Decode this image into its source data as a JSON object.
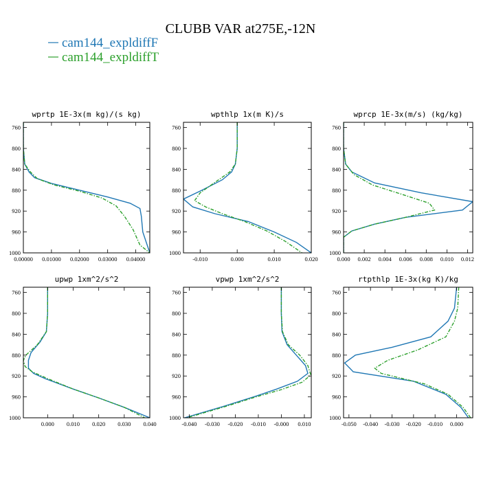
{
  "figure": {
    "title": "CLUBB VAR at275E,-12N",
    "legend": [
      {
        "label": "cam144_expldiffF",
        "color": "#1f77b4",
        "dash": "solid"
      },
      {
        "label": "cam144_expldiffT",
        "color": "#2ca02c",
        "dash": "dashed"
      }
    ]
  },
  "chart_data": [
    {
      "type": "line",
      "title": "wprtp  1E-3x(m kg)/(s kg)",
      "xlim": [
        0,
        0.045
      ],
      "ylim": [
        1000,
        750
      ],
      "ylabel": "",
      "xlabel": "",
      "xticks": [
        0,
        0.01,
        0.02,
        0.03,
        0.04
      ],
      "xtick_labels": [
        "0.00000",
        "0.01000",
        "0.02000",
        "0.03000",
        "0.04000"
      ],
      "yticks": [
        760,
        800,
        840,
        880,
        920,
        960,
        1000
      ],
      "series": [
        {
          "name": "cam144_expldiffF",
          "x": [
            0,
            0,
            0.0005,
            0.002,
            0.004,
            0.01,
            0.02,
            0.03,
            0.038,
            0.0415,
            0.042,
            0.0425,
            0.045
          ],
          "y": [
            750,
            800,
            830,
            845,
            856,
            867,
            880,
            893,
            905,
            915,
            930,
            960,
            1000
          ]
        },
        {
          "name": "cam144_expldiffT",
          "x": [
            0,
            0,
            0.0005,
            0.0025,
            0.005,
            0.011,
            0.02,
            0.028,
            0.033,
            0.036,
            0.039,
            0.0415,
            0.045
          ],
          "y": [
            750,
            800,
            830,
            845,
            858,
            870,
            882,
            895,
            910,
            930,
            955,
            985,
            1000
          ]
        }
      ]
    },
    {
      "type": "line",
      "title": "wpthlp  1x(m K)/s",
      "xlim": [
        -0.0145,
        0.02
      ],
      "ylim": [
        1000,
        750
      ],
      "ylabel": "",
      "xlabel": "",
      "xticks": [
        -0.01,
        0,
        0.01,
        0.02
      ],
      "xtick_labels": [
        "-0.010",
        "0.000",
        "0.010",
        "0.020"
      ],
      "yticks": [
        760,
        800,
        840,
        880,
        920,
        960,
        1000
      ],
      "series": [
        {
          "name": "cam144_expldiffF",
          "x": [
            0,
            0,
            -0.0005,
            -0.0015,
            -0.004,
            -0.0095,
            -0.0145,
            -0.012,
            -0.006,
            0.003,
            0.01,
            0.016,
            0.02
          ],
          "y": [
            750,
            800,
            830,
            845,
            860,
            880,
            897,
            912,
            925,
            940,
            960,
            980,
            1000
          ]
        },
        {
          "name": "cam144_expldiffT",
          "x": [
            0,
            0,
            -0.0005,
            -0.002,
            -0.006,
            -0.01,
            -0.0115,
            -0.0085,
            -0.004,
            0.002,
            0.008,
            0.013,
            0.0175
          ],
          "y": [
            750,
            800,
            830,
            845,
            865,
            885,
            900,
            912,
            925,
            940,
            958,
            978,
            1000
          ]
        }
      ]
    },
    {
      "type": "line",
      "title": "wprcp  1E-3x(m/s) (kg/kg)",
      "xlim": [
        0,
        0.0125
      ],
      "ylim": [
        1000,
        750
      ],
      "ylabel": "",
      "xlabel": "",
      "xticks": [
        0,
        0.002,
        0.004,
        0.006,
        0.008,
        0.01,
        0.012
      ],
      "xtick_labels": [
        "0.000",
        "0.002",
        "0.004",
        "0.006",
        "0.008",
        "0.010",
        "0.012"
      ],
      "yticks": [
        760,
        800,
        840,
        880,
        920,
        960,
        1000
      ],
      "series": [
        {
          "name": "cam144_expldiffF",
          "x": [
            0,
            0,
            0.0002,
            0.0008,
            0.003,
            0.0075,
            0.0125,
            0.0115,
            0.006,
            0.003,
            0.0008,
            0,
            0
          ],
          "y": [
            750,
            800,
            830,
            845,
            866,
            885,
            902,
            918,
            932,
            945,
            958,
            970,
            1000
          ]
        },
        {
          "name": "cam144_expldiffT",
          "x": [
            0,
            0,
            0.0002,
            0.001,
            0.0028,
            0.0055,
            0.0083,
            0.0088,
            0.006,
            0.003,
            0.0008,
            0,
            0
          ],
          "y": [
            750,
            800,
            830,
            850,
            870,
            887,
            905,
            918,
            932,
            945,
            958,
            970,
            1000
          ]
        }
      ]
    },
    {
      "type": "line",
      "title": "upwp  1xm^2/s^2",
      "xlim": [
        -0.0095,
        0.04
      ],
      "ylim": [
        1000,
        750
      ],
      "ylabel": "",
      "xlabel": "",
      "xticks": [
        0,
        0.01,
        0.02,
        0.03,
        0.04
      ],
      "xtick_labels": [
        "0.000",
        "0.010",
        "0.020",
        "0.030",
        "0.040"
      ],
      "yticks": [
        760,
        800,
        840,
        880,
        920,
        960,
        1000
      ],
      "series": [
        {
          "name": "cam144_expldiffF",
          "x": [
            0,
            0,
            -0.0005,
            -0.003,
            -0.0065,
            -0.0075,
            -0.0075,
            -0.0055,
            -0.001,
            0.01,
            0.02,
            0.03,
            0.04
          ],
          "y": [
            750,
            800,
            835,
            855,
            875,
            890,
            905,
            915,
            925,
            945,
            962,
            980,
            1000
          ]
        },
        {
          "name": "cam144_expldiffT",
          "x": [
            0,
            0,
            -0.0005,
            -0.004,
            -0.0085,
            -0.0095,
            -0.0088,
            -0.006,
            0,
            0.01,
            0.02,
            0.03,
            0.038
          ],
          "y": [
            750,
            800,
            835,
            860,
            880,
            890,
            902,
            912,
            925,
            945,
            962,
            980,
            1000
          ]
        }
      ]
    },
    {
      "type": "line",
      "title": "vpwp  1xm^2/s^2",
      "xlim": [
        -0.0425,
        0.013
      ],
      "ylim": [
        1000,
        750
      ],
      "ylabel": "",
      "xlabel": "",
      "xticks": [
        -0.04,
        -0.03,
        -0.02,
        -0.01,
        0,
        0.01
      ],
      "xtick_labels": [
        "-0.040",
        "-0.030",
        "-0.020",
        "-0.010",
        "-0.000",
        "0.010"
      ],
      "yticks": [
        760,
        800,
        840,
        880,
        920,
        960,
        1000
      ],
      "series": [
        {
          "name": "cam144_expldiffF",
          "x": [
            0,
            0,
            0.0003,
            0.0025,
            0.0065,
            0.0105,
            0.0115,
            0.007,
            -0.002,
            -0.012,
            -0.025,
            -0.042
          ],
          "y": [
            750,
            800,
            835,
            860,
            880,
            900,
            915,
            930,
            945,
            960,
            978,
            1000
          ]
        },
        {
          "name": "cam144_expldiffT",
          "x": [
            0,
            0,
            0.0005,
            0.003,
            0.008,
            0.0115,
            0.0128,
            0.009,
            0,
            -0.011,
            -0.024,
            -0.041
          ],
          "y": [
            750,
            800,
            835,
            860,
            880,
            900,
            918,
            932,
            946,
            960,
            978,
            1000
          ]
        }
      ]
    },
    {
      "type": "line",
      "title": "rtpthlp  1E-3x(kg K)/kg",
      "xlim": [
        -0.0525,
        0.0075
      ],
      "ylim": [
        1000,
        750
      ],
      "ylabel": "",
      "xlabel": "",
      "xticks": [
        -0.05,
        -0.04,
        -0.03,
        -0.02,
        -0.01,
        0
      ],
      "xtick_labels": [
        "-0.050",
        "-0.040",
        "-0.030",
        "-0.020",
        "-0.010",
        "0.000"
      ],
      "yticks": [
        760,
        800,
        840,
        880,
        920,
        960,
        1000
      ],
      "series": [
        {
          "name": "cam144_expldiffF",
          "x": [
            0,
            -0.001,
            -0.004,
            -0.012,
            -0.03,
            -0.047,
            -0.052,
            -0.048,
            -0.02,
            -0.005,
            0.002,
            0.0055
          ],
          "y": [
            750,
            790,
            815,
            845,
            865,
            880,
            895,
            912,
            930,
            955,
            980,
            1000
          ]
        },
        {
          "name": "cam144_expldiffT",
          "x": [
            0.001,
            0.0005,
            -0.001,
            -0.005,
            -0.018,
            -0.032,
            -0.038,
            -0.035,
            -0.015,
            -0.004,
            0.003,
            0.0065
          ],
          "y": [
            750,
            790,
            815,
            845,
            870,
            890,
            905,
            915,
            935,
            955,
            980,
            1000
          ]
        }
      ]
    }
  ]
}
